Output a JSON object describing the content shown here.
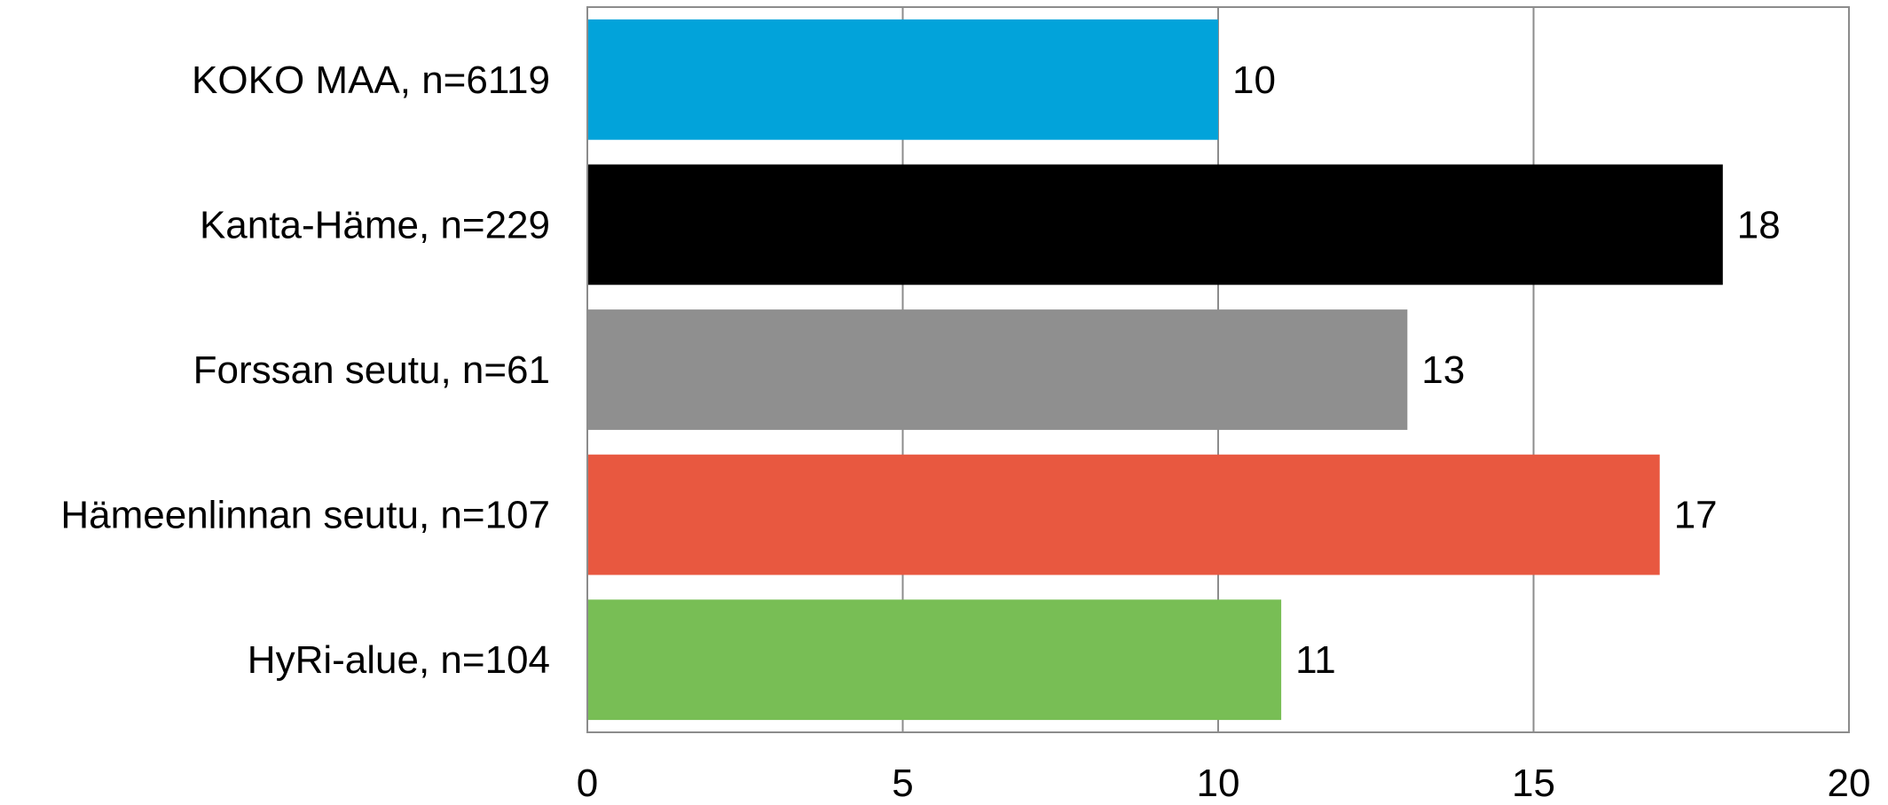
{
  "chart_data": {
    "type": "bar",
    "orientation": "horizontal",
    "title": "",
    "xlabel": "",
    "ylabel": "",
    "categories": [
      "KOKO MAA, n=6119",
      "Kanta-Häme, n=229",
      "Forssan seutu, n=61",
      "Hämeenlinnan seutu, n=107",
      "HyRi-alue, n=104"
    ],
    "values": [
      10,
      18,
      13,
      17,
      11
    ],
    "data_labels": [
      "10",
      "18",
      "13",
      "17",
      "11"
    ],
    "colors": [
      "#02A3DA",
      "#000000",
      "#8F8F8F",
      "#E85840",
      "#78BE55"
    ],
    "xlim": [
      0,
      20
    ],
    "x_ticks": [
      0,
      5,
      10,
      15,
      20
    ],
    "x_tick_labels": [
      "0",
      "5",
      "10",
      "15",
      "20"
    ],
    "grid": true,
    "legend": "none"
  }
}
